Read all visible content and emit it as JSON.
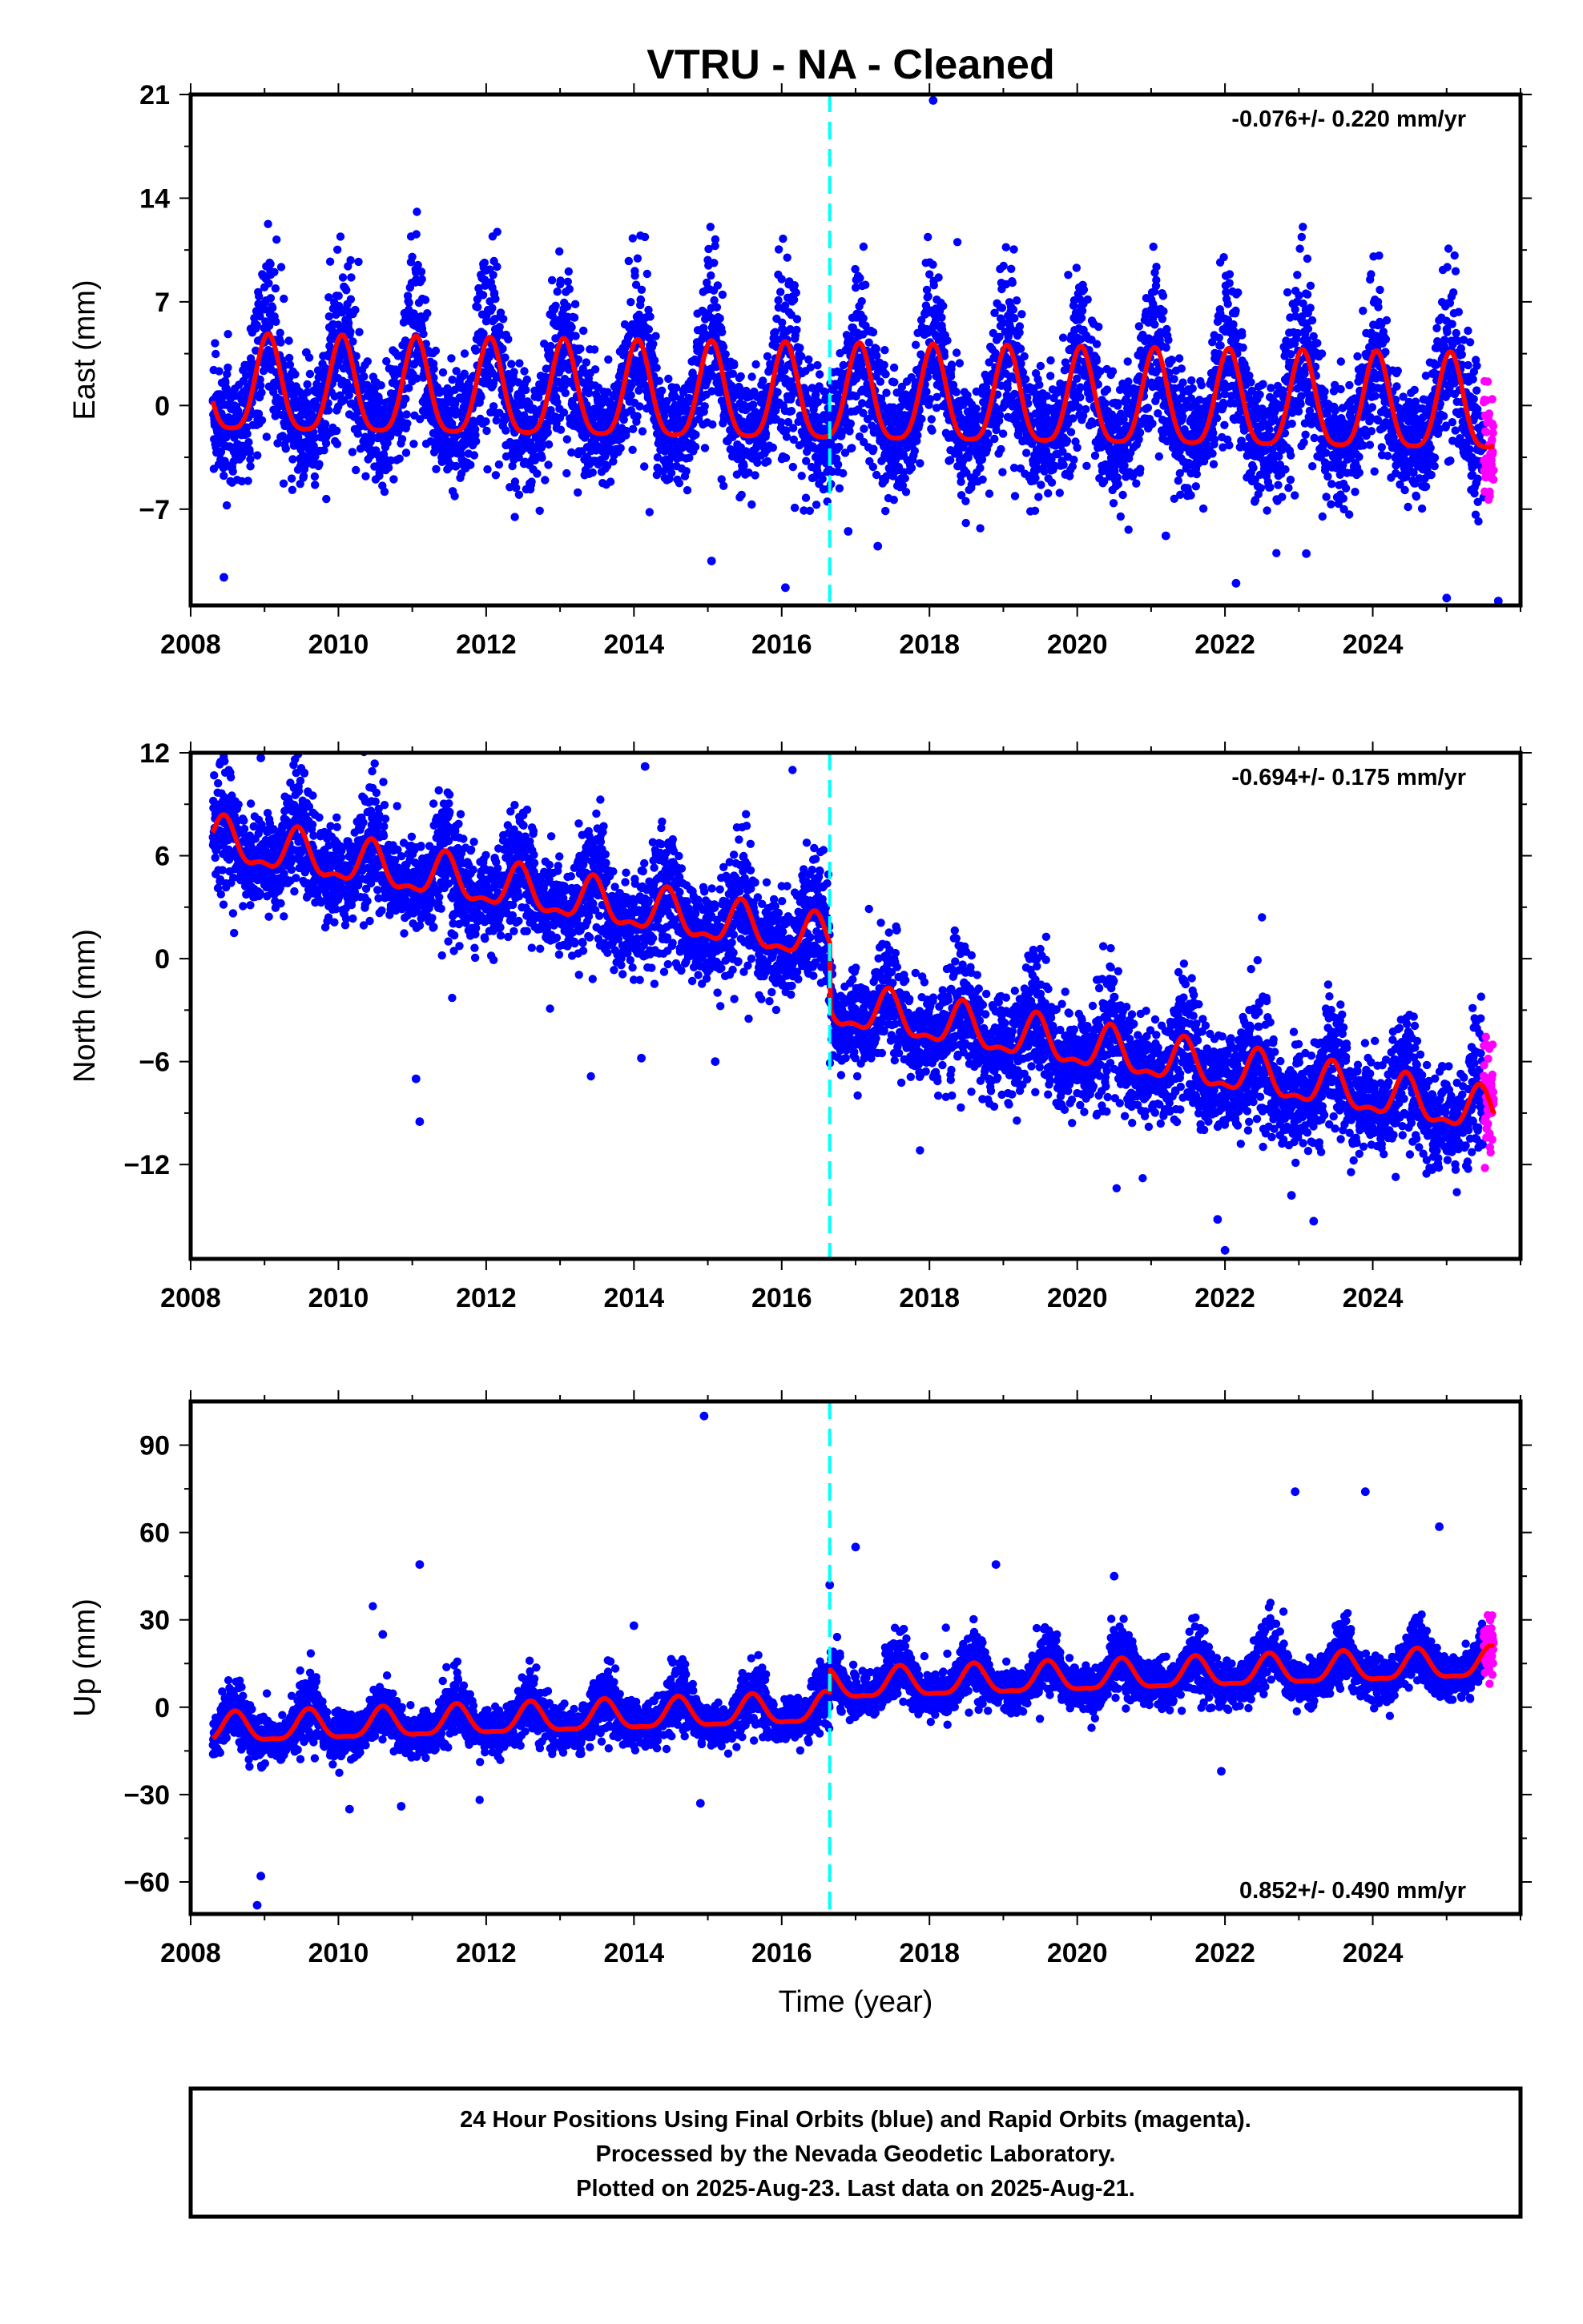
{
  "title": "VTRU  - NA - Cleaned",
  "colors": {
    "final_orbits": "#0000ff",
    "rapid_orbits": "#ff00ff",
    "model": "#ff0000",
    "equipment_change": "#00ffff",
    "frame": "#000000"
  },
  "chart_data": [
    {
      "type": "scatter",
      "component": "east",
      "ylabel": "East (mm)",
      "xlabel": "",
      "xlim": [
        2008.0,
        2026.0
      ],
      "ylim": [
        -13.5,
        21.0
      ],
      "xticks": [
        2008,
        2010,
        2012,
        2014,
        2016,
        2018,
        2020,
        2022,
        2024
      ],
      "yticks": [
        -7,
        0,
        7,
        14,
        21
      ],
      "rate_text": "-0.076+/- 0.220 mm/yr",
      "rate_position": "top-right",
      "equipment_change_epoch": 2016.65,
      "data_span": [
        2008.3,
        2025.64
      ],
      "rapid_start": 2025.5,
      "model": {
        "offset": 1.0,
        "trend_mm_per_yr": -0.076,
        "annual_amplitude": 3.2,
        "semiannual_amplitude": 0.7,
        "phase_peak": 0.05,
        "noise_sd": 2.4,
        "offset_at_equipment_change": 0.0
      },
      "outliers": [
        [
          2008.45,
          -11.6
        ],
        [
          2016.05,
          -12.3
        ],
        [
          2015.05,
          -10.5
        ],
        [
          2018.05,
          20.6
        ],
        [
          2016.9,
          -8.5
        ],
        [
          2017.3,
          -9.5
        ],
        [
          2021.2,
          -8.8
        ],
        [
          2023.1,
          -10.0
        ],
        [
          2025.0,
          -13.0
        ],
        [
          2025.7,
          -13.2
        ],
        [
          2022.15,
          -12.0
        ]
      ]
    },
    {
      "type": "scatter",
      "component": "north",
      "ylabel": "North (mm)",
      "xlabel": "",
      "xlim": [
        2008.0,
        2026.0
      ],
      "ylim": [
        -17.5,
        12.0
      ],
      "xticks": [
        2008,
        2010,
        2012,
        2014,
        2016,
        2018,
        2020,
        2022,
        2024
      ],
      "yticks": [
        -12,
        -6,
        0,
        6,
        12
      ],
      "rate_text": "-0.694+/- 0.175 mm/yr",
      "rate_position": "top-right",
      "equipment_change_epoch": 2016.65,
      "data_span": [
        2008.3,
        2025.64
      ],
      "rapid_start": 2025.5,
      "model": {
        "offset": 6.8,
        "trend_mm_per_yr": -0.7,
        "annual_amplitude": 1.2,
        "semiannual_amplitude": 0.5,
        "phase_peak": 0.45,
        "noise_sd": 1.6,
        "offset_at_equipment_change": -3.8
      },
      "outliers": [
        [
          2011.1,
          -9.5
        ],
        [
          2011.05,
          -7.0
        ],
        [
          2014.1,
          -5.8
        ],
        [
          2015.1,
          -6.0
        ],
        [
          2021.9,
          -15.2
        ],
        [
          2022.0,
          -17.0
        ],
        [
          2022.9,
          -13.8
        ],
        [
          2023.2,
          -15.3
        ],
        [
          2014.15,
          11.2
        ],
        [
          2008.95,
          11.7
        ]
      ]
    },
    {
      "type": "scatter",
      "component": "up",
      "ylabel": "Up (mm)",
      "xlabel": "Time (year)",
      "xlim": [
        2008.0,
        2026.0
      ],
      "ylim": [
        -71.0,
        105.0
      ],
      "xticks": [
        2008,
        2010,
        2012,
        2014,
        2016,
        2018,
        2020,
        2022,
        2024
      ],
      "yticks": [
        -60,
        -30,
        0,
        30,
        60,
        90
      ],
      "rate_text": "0.852+/- 0.490 mm/yr",
      "rate_position": "bottom-right",
      "equipment_change_epoch": 2016.65,
      "data_span": [
        2008.3,
        2025.64
      ],
      "rapid_start": 2025.5,
      "model": {
        "offset": -8.0,
        "trend_mm_per_yr": 0.85,
        "annual_amplitude": 5.0,
        "semiannual_amplitude": 1.5,
        "phase_peak": 0.6,
        "noise_sd": 4.5,
        "offset_at_equipment_change": 8.0
      },
      "outliers": [
        [
          2014.95,
          100.0
        ],
        [
          2008.95,
          -58.0
        ],
        [
          2008.9,
          -68.0
        ],
        [
          2011.1,
          49.0
        ],
        [
          2016.65,
          42.0
        ],
        [
          2017.0,
          55.0
        ],
        [
          2018.9,
          49.0
        ],
        [
          2020.5,
          45.0
        ],
        [
          2022.95,
          74.0
        ],
        [
          2023.9,
          74.0
        ],
        [
          2024.9,
          62.0
        ],
        [
          2010.15,
          -35.0
        ],
        [
          2010.85,
          -34.0
        ],
        [
          2014.9,
          -33.0
        ],
        [
          2021.95,
          -22.0
        ],
        [
          2014.0,
          28.0
        ],
        [
          2010.6,
          25.0
        ]
      ]
    }
  ],
  "footer": {
    "line1": "24 Hour Positions Using Final Orbits (blue) and Rapid Orbits (magenta).",
    "line2": "Processed by the Nevada Geodetic Laboratory.",
    "line3": "Plotted on 2025-Aug-23. Last data on 2025-Aug-21."
  }
}
